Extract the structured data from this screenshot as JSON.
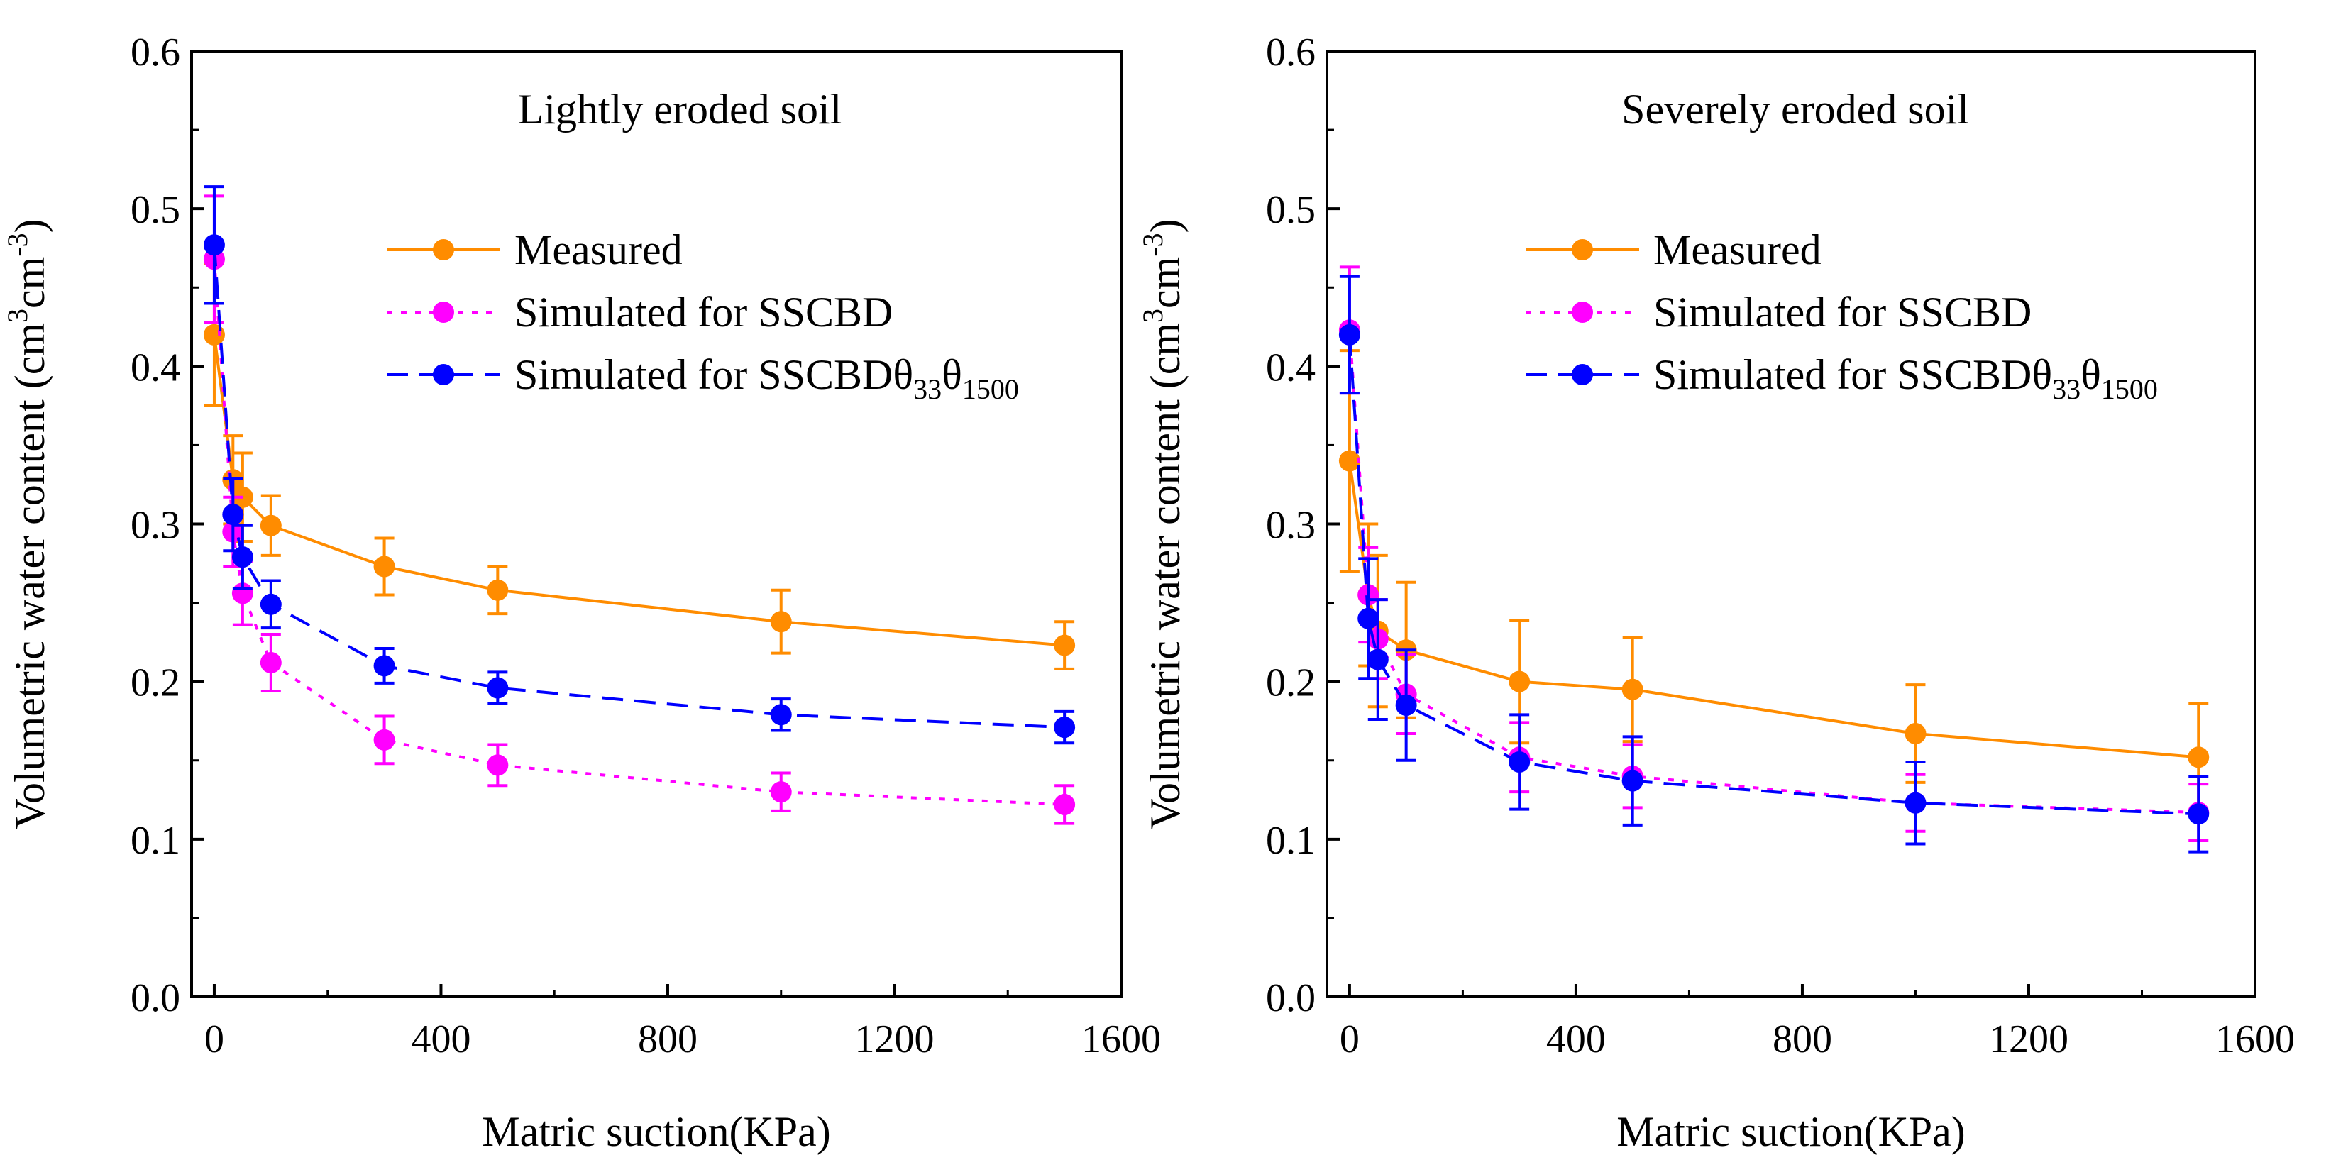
{
  "colors": {
    "measured": "#ff8c00",
    "ssbd": "#ff00ff",
    "ssbd_theta": "#0000ff",
    "axis": "#000000"
  },
  "chart_data": [
    {
      "type": "line",
      "title": "Lightly eroded soil",
      "xlabel": "Matric suction(KPa)",
      "ylabel_main": "Volumetric water content (cm",
      "ylabel_sup1": "3",
      "ylabel_mid": "cm",
      "ylabel_sup2": "-3",
      "ylabel_close": ")",
      "xlim": [
        -40,
        1600
      ],
      "ylim": [
        0.0,
        0.6
      ],
      "xticks": [
        {
          "value": 0,
          "label": "0"
        },
        {
          "value": 400,
          "label": "400"
        },
        {
          "value": 800,
          "label": "800"
        },
        {
          "value": 1200,
          "label": "1200"
        },
        {
          "value": 1600,
          "label": "1600"
        }
      ],
      "yticks": [
        {
          "value": 0.0,
          "label": "0.0"
        },
        {
          "value": 0.1,
          "label": "0.1"
        },
        {
          "value": 0.2,
          "label": "0.2"
        },
        {
          "value": 0.3,
          "label": "0.3"
        },
        {
          "value": 0.4,
          "label": "0.4"
        },
        {
          "value": 0.5,
          "label": "0.5"
        },
        {
          "value": 0.6,
          "label": "0.6"
        }
      ],
      "legend": {
        "measured": "Measured",
        "ssbd": "Simulated  for SSCBD",
        "theta_prefix": "Simulated  for SSCBD",
        "theta1": "θ",
        "sub1": "33",
        "theta2": "θ",
        "sub2": "1500"
      },
      "series": [
        {
          "name": "Measured",
          "key": "measured",
          "x": [
            0,
            33,
            50,
            100,
            300,
            500,
            1000,
            1500
          ],
          "y": [
            0.42,
            0.328,
            0.317,
            0.299,
            0.273,
            0.258,
            0.238,
            0.223
          ],
          "err": [
            0.045,
            0.028,
            0.028,
            0.019,
            0.018,
            0.015,
            0.02,
            0.015
          ]
        },
        {
          "name": "Simulated  for SSCBD",
          "key": "ssbd",
          "x": [
            0,
            33,
            50,
            100,
            300,
            500,
            1000,
            1500
          ],
          "y": [
            0.468,
            0.295,
            0.256,
            0.212,
            0.163,
            0.147,
            0.13,
            0.122
          ],
          "err": [
            0.04,
            0.022,
            0.02,
            0.018,
            0.015,
            0.013,
            0.012,
            0.012
          ]
        },
        {
          "name": "Simulated  for SSCBDθ33θ1500",
          "key": "ssbd_theta",
          "x": [
            0,
            33,
            50,
            100,
            300,
            500,
            1000,
            1500
          ],
          "y": [
            0.477,
            0.306,
            0.279,
            0.249,
            0.21,
            0.196,
            0.179,
            0.171
          ],
          "err": [
            0.037,
            0.023,
            0.02,
            0.015,
            0.011,
            0.01,
            0.01,
            0.01
          ]
        }
      ]
    },
    {
      "type": "line",
      "title": "Severely eroded soil",
      "xlabel": "Matric suction(KPa)",
      "ylabel_main": "Volumetric water content (cm",
      "ylabel_sup1": "3",
      "ylabel_mid": "cm",
      "ylabel_sup2": "-3",
      "ylabel_close": ")",
      "xlim": [
        -40,
        1600
      ],
      "ylim": [
        0.0,
        0.6
      ],
      "xticks": [
        {
          "value": 0,
          "label": "0"
        },
        {
          "value": 400,
          "label": "400"
        },
        {
          "value": 800,
          "label": "800"
        },
        {
          "value": 1200,
          "label": "1200"
        },
        {
          "value": 1600,
          "label": "1600"
        }
      ],
      "yticks": [
        {
          "value": 0.0,
          "label": "0.0"
        },
        {
          "value": 0.1,
          "label": "0.1"
        },
        {
          "value": 0.2,
          "label": "0.2"
        },
        {
          "value": 0.3,
          "label": "0.3"
        },
        {
          "value": 0.4,
          "label": "0.4"
        },
        {
          "value": 0.5,
          "label": "0.5"
        },
        {
          "value": 0.6,
          "label": "0.6"
        }
      ],
      "legend": {
        "measured": "Measured",
        "ssbd": "Simulated  for SSCBD",
        "theta_prefix": "Simulated  for SSCBD",
        "theta1": "θ",
        "sub1": "33",
        "theta2": "θ",
        "sub2": "1500"
      },
      "series": [
        {
          "name": "Measured",
          "key": "measured",
          "x": [
            0,
            33,
            50,
            100,
            300,
            500,
            1000,
            1500
          ],
          "y": [
            0.34,
            0.255,
            0.232,
            0.22,
            0.2,
            0.195,
            0.167,
            0.152
          ],
          "err": [
            0.07,
            0.045,
            0.048,
            0.043,
            0.039,
            0.033,
            0.031,
            0.034
          ]
        },
        {
          "name": "Simulated  for SSCBD",
          "key": "ssbd",
          "x": [
            0,
            33,
            50,
            100,
            300,
            500,
            1000,
            1500
          ],
          "y": [
            0.423,
            0.255,
            0.227,
            0.192,
            0.152,
            0.14,
            0.123,
            0.117
          ],
          "err": [
            0.04,
            0.03,
            0.025,
            0.025,
            0.022,
            0.02,
            0.018,
            0.018
          ]
        },
        {
          "name": "Simulated  for SSCBDθ33θ1500",
          "key": "ssbd_theta",
          "x": [
            0,
            33,
            50,
            100,
            300,
            500,
            1000,
            1500
          ],
          "y": [
            0.42,
            0.24,
            0.214,
            0.185,
            0.149,
            0.137,
            0.123,
            0.116
          ],
          "err": [
            0.037,
            0.038,
            0.038,
            0.035,
            0.03,
            0.028,
            0.026,
            0.024
          ]
        }
      ]
    }
  ]
}
